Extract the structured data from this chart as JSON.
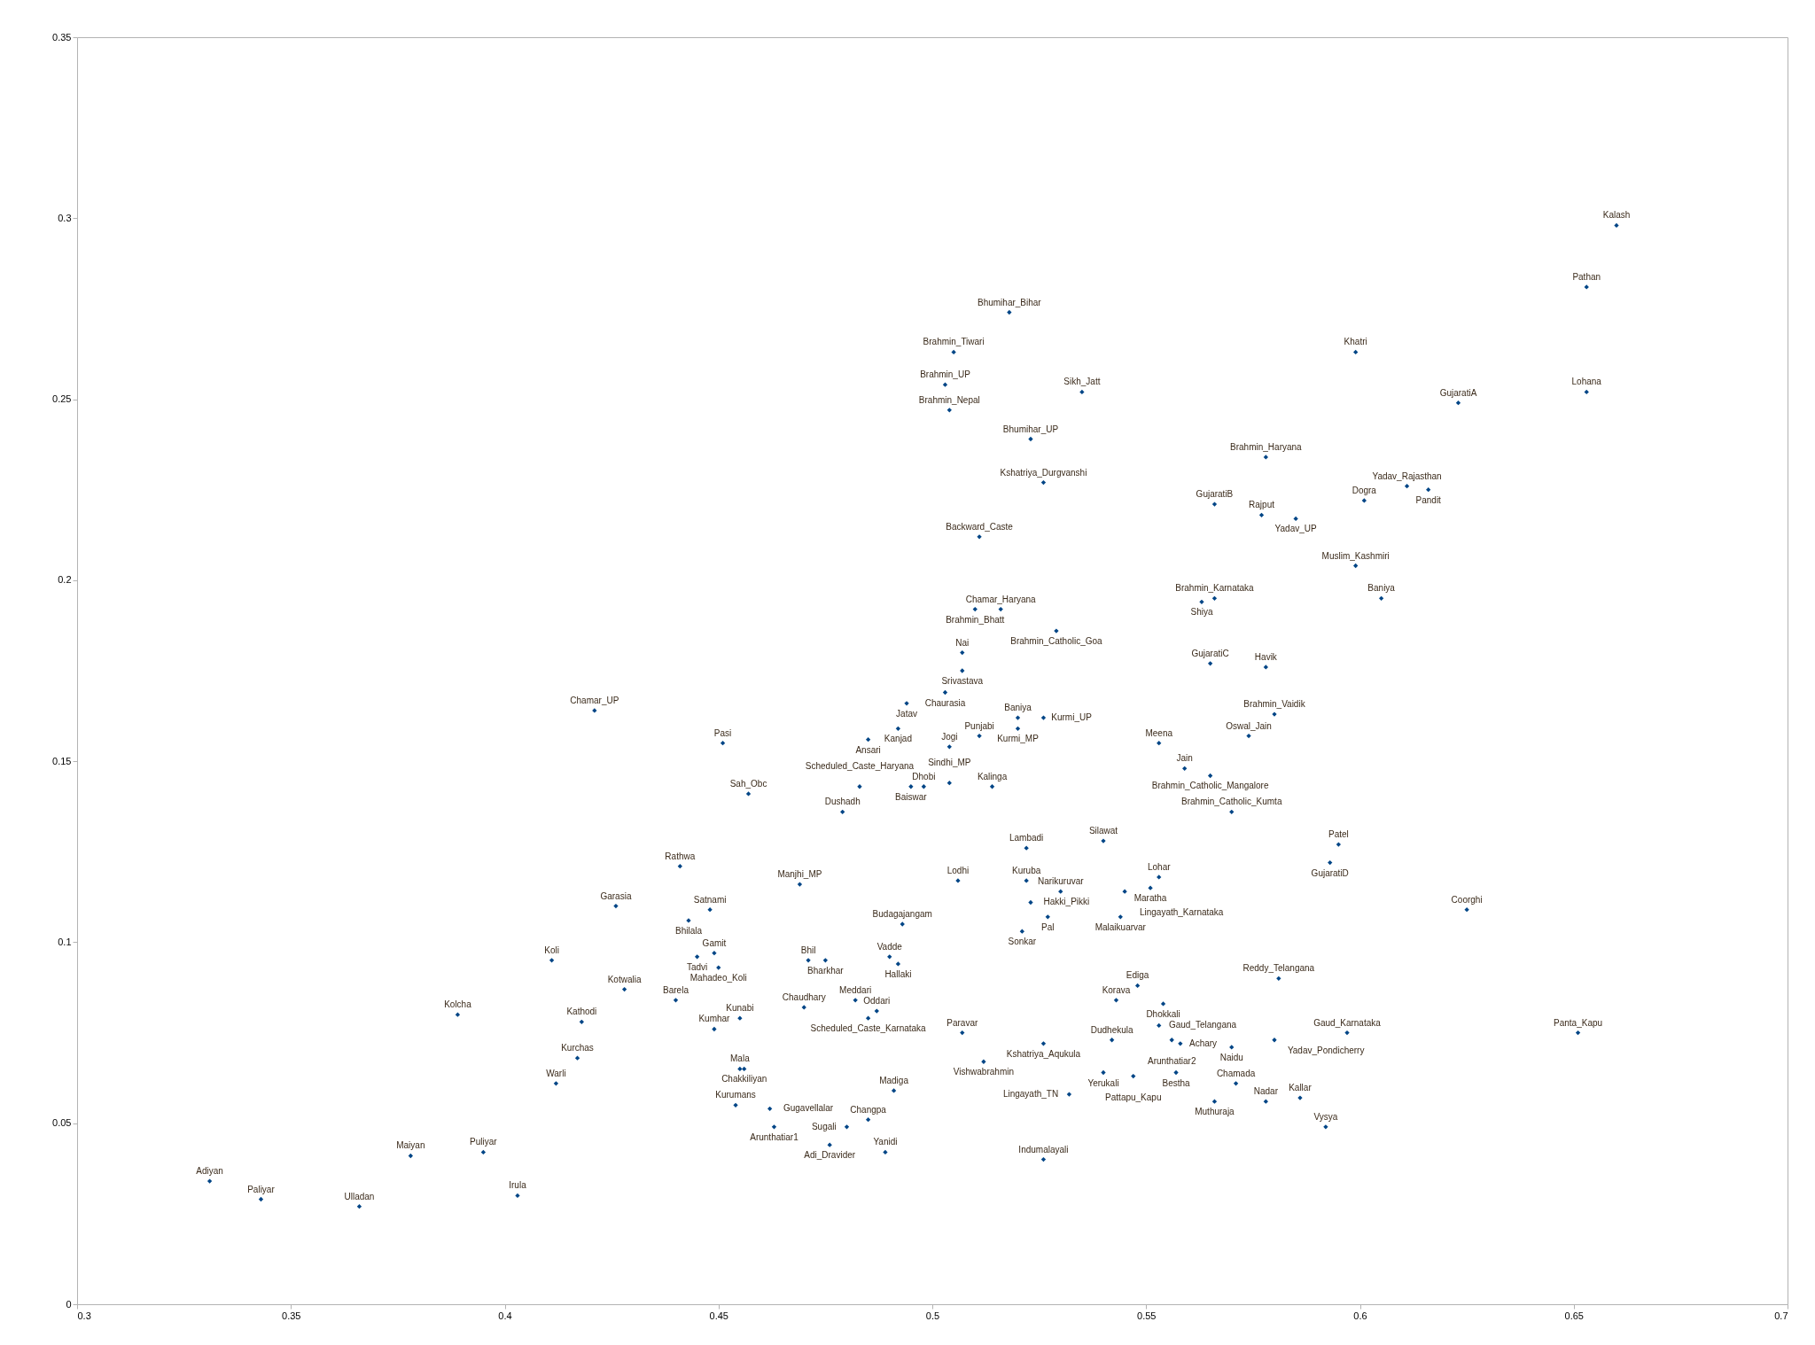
{
  "chart_data": {
    "type": "scatter",
    "xlim": [
      0.3,
      0.7
    ],
    "ylim": [
      0,
      0.35
    ],
    "xticks": [
      0.3,
      0.35,
      0.4,
      0.45,
      0.5,
      0.55,
      0.6,
      0.65,
      0.7
    ],
    "yticks": [
      0,
      0.05,
      0.1,
      0.15,
      0.2,
      0.25,
      0.3,
      0.35
    ],
    "marker": "diamond",
    "series": [
      {
        "color": "#004586",
        "x": [
          0.66,
          0.653,
          0.599,
          0.653,
          0.623,
          0.518,
          0.505,
          0.503,
          0.504,
          0.535,
          0.523,
          0.526,
          0.578,
          0.566,
          0.577,
          0.585,
          0.601,
          0.611,
          0.616,
          0.511,
          0.599,
          0.566,
          0.563,
          0.605,
          0.516,
          0.51,
          0.529,
          0.507,
          0.507,
          0.503,
          0.494,
          0.52,
          0.526,
          0.52,
          0.511,
          0.504,
          0.492,
          0.485,
          0.498,
          0.495,
          0.504,
          0.514,
          0.483,
          0.457,
          0.479,
          0.451,
          0.421,
          0.553,
          0.574,
          0.58,
          0.565,
          0.578,
          0.559,
          0.565,
          0.57,
          0.522,
          0.54,
          0.595,
          0.593,
          0.506,
          0.522,
          0.553,
          0.551,
          0.545,
          0.53,
          0.523,
          0.527,
          0.544,
          0.521,
          0.625,
          0.581,
          0.548,
          0.543,
          0.554,
          0.553,
          0.556,
          0.558,
          0.542,
          0.526,
          0.57,
          0.58,
          0.597,
          0.651,
          0.54,
          0.547,
          0.557,
          0.571,
          0.532,
          0.566,
          0.578,
          0.586,
          0.592,
          0.526,
          0.469,
          0.448,
          0.443,
          0.449,
          0.445,
          0.45,
          0.471,
          0.475,
          0.493,
          0.49,
          0.492,
          0.44,
          0.47,
          0.482,
          0.487,
          0.485,
          0.455,
          0.449,
          0.507,
          0.512,
          0.455,
          0.456,
          0.491,
          0.454,
          0.462,
          0.463,
          0.485,
          0.48,
          0.476,
          0.489,
          0.441,
          0.426,
          0.411,
          0.428,
          0.389,
          0.418,
          0.417,
          0.412,
          0.378,
          0.395,
          0.331,
          0.343,
          0.366,
          0.403
        ],
        "values": [
          0.298,
          0.281,
          0.263,
          0.252,
          0.249,
          0.274,
          0.263,
          0.254,
          0.247,
          0.252,
          0.239,
          0.227,
          0.234,
          0.221,
          0.218,
          0.217,
          0.222,
          0.226,
          0.225,
          0.212,
          0.204,
          0.195,
          0.194,
          0.195,
          0.192,
          0.192,
          0.186,
          0.18,
          0.175,
          0.169,
          0.166,
          0.162,
          0.162,
          0.159,
          0.157,
          0.154,
          0.159,
          0.156,
          0.143,
          0.143,
          0.144,
          0.143,
          0.143,
          0.141,
          0.136,
          0.155,
          0.164,
          0.155,
          0.157,
          0.163,
          0.177,
          0.176,
          0.148,
          0.146,
          0.136,
          0.126,
          0.128,
          0.127,
          0.122,
          0.117,
          0.117,
          0.118,
          0.115,
          0.114,
          0.114,
          0.111,
          0.107,
          0.107,
          0.103,
          0.109,
          0.09,
          0.088,
          0.084,
          0.083,
          0.077,
          0.073,
          0.072,
          0.073,
          0.072,
          0.071,
          0.073,
          0.075,
          0.075,
          0.064,
          0.063,
          0.064,
          0.061,
          0.058,
          0.056,
          0.056,
          0.057,
          0.049,
          0.04,
          0.116,
          0.109,
          0.106,
          0.097,
          0.096,
          0.093,
          0.095,
          0.095,
          0.105,
          0.096,
          0.094,
          0.084,
          0.082,
          0.084,
          0.081,
          0.079,
          0.079,
          0.076,
          0.075,
          0.067,
          0.065,
          0.065,
          0.059,
          0.055,
          0.054,
          0.049,
          0.051,
          0.049,
          0.044,
          0.042,
          0.121,
          0.11,
          0.095,
          0.087,
          0.08,
          0.078,
          0.068,
          0.061,
          0.041,
          0.042,
          0.034,
          0.029,
          0.027,
          0.03
        ],
        "value_labels": [
          "Kalash",
          "Pathan",
          "Khatri",
          "Lohana",
          "GujaratiA",
          "Bhumihar_Bihar",
          "Brahmin_Tiwari",
          "Brahmin_UP",
          "Brahmin_Nepal",
          "Sikh_Jatt",
          "Bhumihar_UP",
          "Kshatriya_Durgvanshi",
          "Brahmin_Haryana",
          "GujaratiB",
          "Rajput",
          "Yadav_UP",
          "Dogra",
          "Yadav_Rajasthan",
          "Pandit",
          "Backward_Caste",
          "Muslim_Kashmiri",
          "Brahmin_Karnataka",
          "Shiya",
          "Baniya",
          "Chamar_Haryana",
          "Brahmin_Bhatt",
          "Brahmin_Catholic_Goa",
          "Nai",
          "Srivastava",
          "Chaurasia",
          "Jatav",
          "Baniya",
          "Kurmi_UP",
          "Kurmi_MP",
          "Punjabi",
          "Jogi",
          "Kanjad",
          "Ansari",
          "Dhobi",
          "Baiswar",
          "Sindhi_MP",
          "Kalinga",
          "Scheduled_Caste_Haryana",
          "Sah_Obc",
          "Dushadh",
          "Pasi",
          "Chamar_UP",
          "Meena",
          "Oswal_Jain",
          "Brahmin_Vaidik",
          "GujaratiC",
          "Havik",
          "Jain",
          "Brahmin_Catholic_Mangalore",
          "Brahmin_Catholic_Kumta",
          "Lambadi",
          "Silawat",
          "Patel",
          "GujaratiD",
          "Lodhi",
          "Kuruba",
          "Lohar",
          "Maratha",
          "Lingayath_Karnataka",
          "Narikuruvar",
          "Hakki_Pikki",
          "Pal",
          "Malaikuarvar",
          "Sonkar",
          "Coorghi",
          "Reddy_Telangana",
          "Ediga",
          "Korava",
          "Dhokkali",
          "Gaud_Telangana",
          "Arunthatiar2",
          "Achary",
          "Dudhekula",
          "Kshatriya_Aqukula",
          "Naidu",
          "Yadav_Pondicherry",
          "Gaud_Karnataka",
          "Panta_Kapu",
          "Yerukali",
          "Pattapu_Kapu",
          "Bestha",
          "Chamada",
          "Lingayath_TN",
          "Muthuraja",
          "Nadar",
          "Kallar",
          "Vysya",
          "Indumalayali",
          "Manjhi_MP",
          "Satnami",
          "Bhilala",
          "Gamit",
          "Tadvi",
          "Mahadeo_Koli",
          "Bhil",
          "Bharkhar",
          "Budagajangam",
          "Vadde",
          "Hallaki",
          "Barela",
          "Chaudhary",
          "Meddari",
          "Oddari",
          "Scheduled_Caste_Karnataka",
          "Kunabi",
          "Kumhar",
          "Paravar",
          "Vishwabrahmin",
          "Mala",
          "Chakkiliyan",
          "Madiga",
          "Kurumans",
          "Gugavellalar",
          "Arunthatiar1",
          "Changpa",
          "Sugali",
          "Adi_Dravider",
          "Yanidi",
          "Rathwa",
          "Garasia",
          "Koli",
          "Kotwalia",
          "Kolcha",
          "Kathodi",
          "Kurchas",
          "Warli",
          "Maiyan",
          "Puliyar",
          "Adiyan",
          "Paliyar",
          "Ulladan",
          "Irula"
        ]
      }
    ]
  }
}
